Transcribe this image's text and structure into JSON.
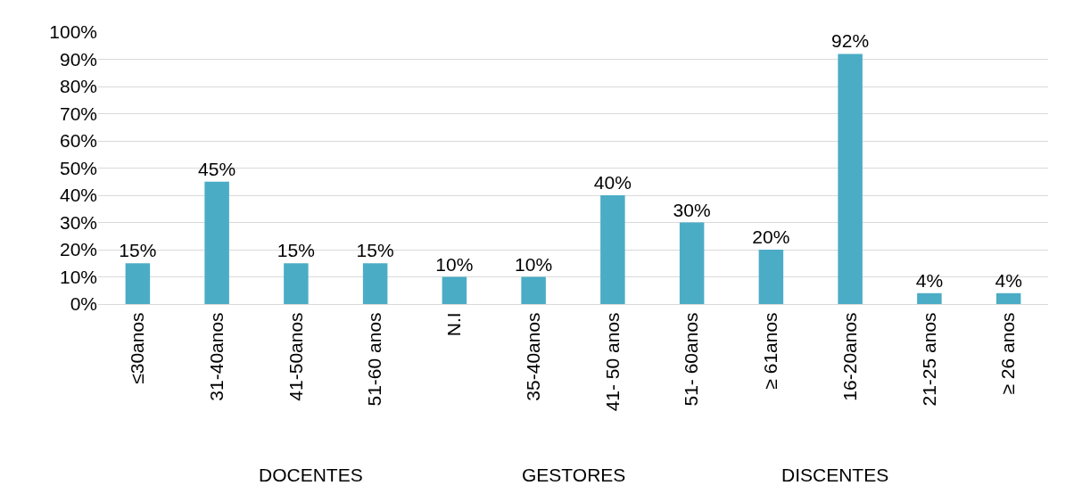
{
  "chart_data": {
    "type": "bar",
    "categories": [
      "≤30anos",
      "31-40anos",
      "41-50anos",
      "51-60 anos",
      "N.I",
      "35-40anos",
      "41- 50 anos",
      "51- 60anos",
      "≥ 61anos",
      "16-20anos",
      "21-25 anos",
      "≥ 26 anos"
    ],
    "values": [
      15,
      45,
      15,
      15,
      10,
      10,
      40,
      30,
      20,
      92,
      4,
      4
    ],
    "value_labels": [
      "15%",
      "45%",
      "15%",
      "15%",
      "10%",
      "10%",
      "40%",
      "30%",
      "20%",
      "92%",
      "4%",
      "4%"
    ],
    "color": "#4bacc6",
    "ylim": [
      0,
      100
    ],
    "yticks": [
      {
        "value": 0,
        "label": "0%"
      },
      {
        "value": 10,
        "label": "10%"
      },
      {
        "value": 20,
        "label": "20%"
      },
      {
        "value": 30,
        "label": "30%"
      },
      {
        "value": 40,
        "label": "40%"
      },
      {
        "value": 50,
        "label": "50%"
      },
      {
        "value": 60,
        "label": "60%"
      },
      {
        "value": 70,
        "label": "70%"
      },
      {
        "value": 80,
        "label": "80%"
      },
      {
        "value": 90,
        "label": "90%"
      },
      {
        "value": 100,
        "label": "100%"
      }
    ],
    "grid": "y",
    "legend": false,
    "annotations": [
      "DOCENTES",
      "GESTORES",
      "DISCENTES"
    ]
  }
}
